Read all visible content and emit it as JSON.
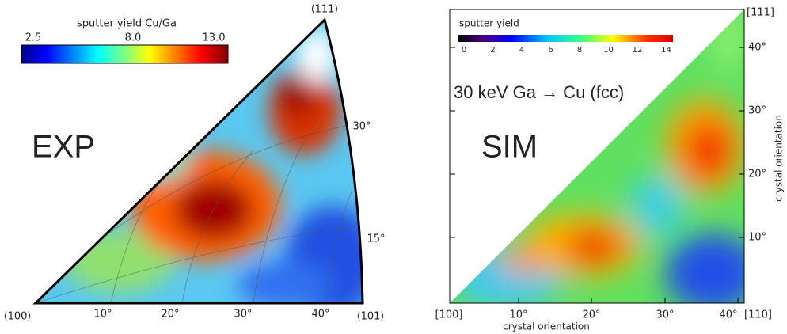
{
  "left": {
    "colorbar_title": "sputter yield Cu/Ga",
    "colorbar_ticks": [
      "2.5",
      "8.0",
      "13.0"
    ],
    "label": "EXP",
    "corners": [
      "⟨100⟩",
      "⟨101⟩",
      "⟨111⟩"
    ],
    "bottom_ticks": [
      "10°",
      "20°",
      "30°",
      "40°"
    ],
    "arc_ticks": [
      "15°",
      "30°"
    ]
  },
  "right": {
    "colorbar_title": "sputter yield",
    "colorbar_ticks": [
      "0",
      "2",
      "4",
      "6",
      "8",
      "10",
      "12",
      "14"
    ],
    "annotation": "30 keV Ga → Cu (fcc)",
    "label": "SIM",
    "corners": [
      "[100]",
      "[110]",
      "[111]"
    ],
    "bottom_ticks": [
      "10°",
      "20°",
      "30°",
      "40°"
    ],
    "side_ticks": [
      "10°",
      "20°",
      "30°",
      "40°"
    ],
    "x_axis_label": "crystal orientation",
    "y_axis_label": "crystal orientation"
  }
}
